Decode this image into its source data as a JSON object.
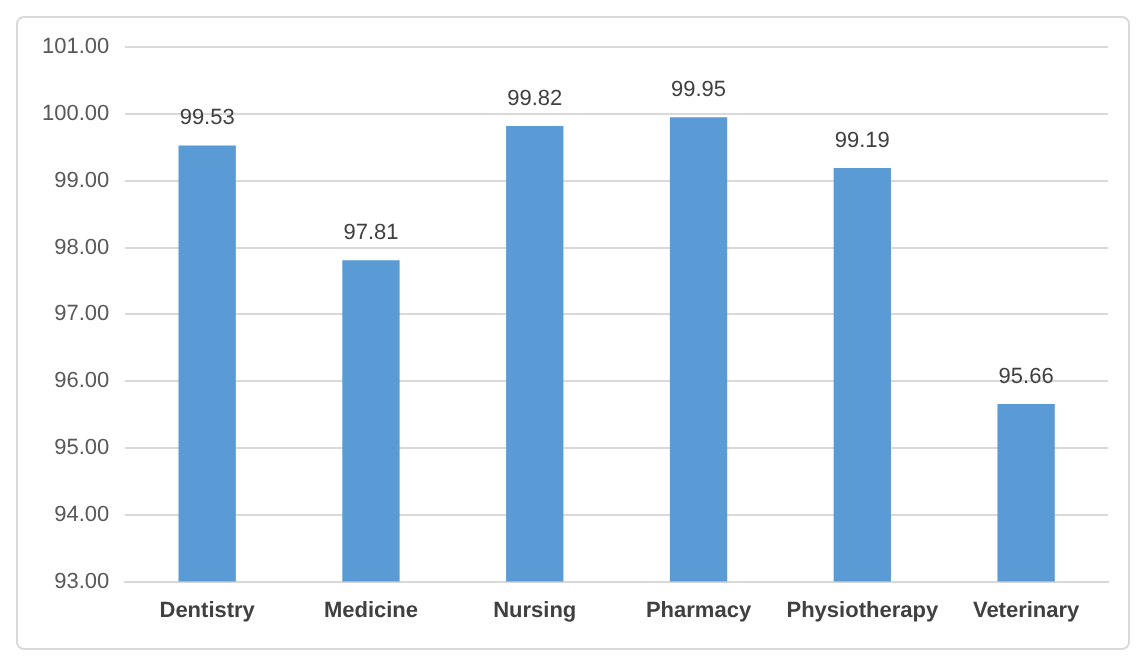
{
  "chart_data": {
    "type": "bar",
    "categories": [
      "Dentistry",
      "Medicine",
      "Nursing",
      "Pharmacy",
      "Physiotherapy",
      "Veterinary"
    ],
    "values": [
      99.53,
      97.81,
      99.82,
      99.95,
      99.19,
      95.66
    ],
    "color": "#5b9bd5",
    "ylim": [
      93,
      101
    ],
    "yticks": [
      {
        "value": 93,
        "label": "93.00"
      },
      {
        "value": 94,
        "label": "94.00"
      },
      {
        "value": 95,
        "label": "95.00"
      },
      {
        "value": 96,
        "label": "96.00"
      },
      {
        "value": 97,
        "label": "97.00"
      },
      {
        "value": 98,
        "label": "98.00"
      },
      {
        "value": 99,
        "label": "99.00"
      },
      {
        "value": 100,
        "label": "100.00"
      },
      {
        "value": 101,
        "label": "101.00"
      }
    ],
    "grid": "y",
    "data_labels": true,
    "legend": false
  }
}
